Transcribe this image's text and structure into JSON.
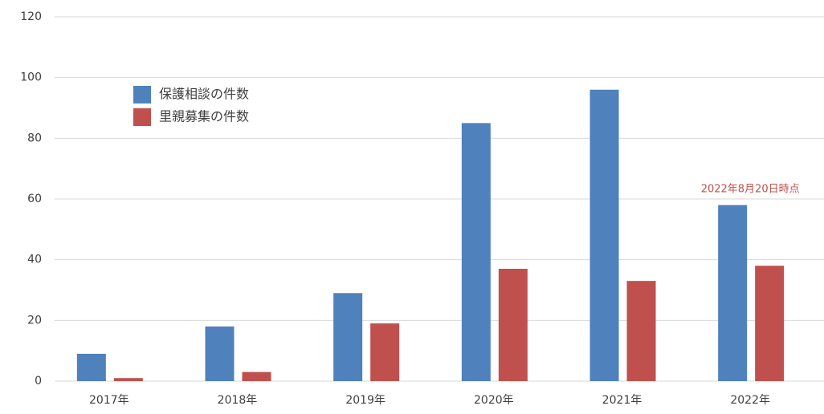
{
  "chart_data": {
    "type": "bar",
    "categories": [
      "2017年",
      "2018年",
      "2019年",
      "2020年",
      "2021年",
      "2022年"
    ],
    "series": [
      {
        "name": "保護相談の件数",
        "color": "#4f81bd",
        "values": [
          9,
          18,
          29,
          85,
          96,
          58
        ]
      },
      {
        "name": "里親募集の件数",
        "color": "#c0504d",
        "values": [
          1,
          3,
          19,
          37,
          33,
          38
        ]
      }
    ],
    "ylim": [
      0,
      120
    ],
    "yticks": [
      0,
      20,
      40,
      60,
      80,
      100,
      120
    ],
    "grid": true,
    "legend": "upper-left",
    "annotations": [
      {
        "text": "2022年8月20日時点",
        "color": "#c0504d"
      }
    ]
  }
}
